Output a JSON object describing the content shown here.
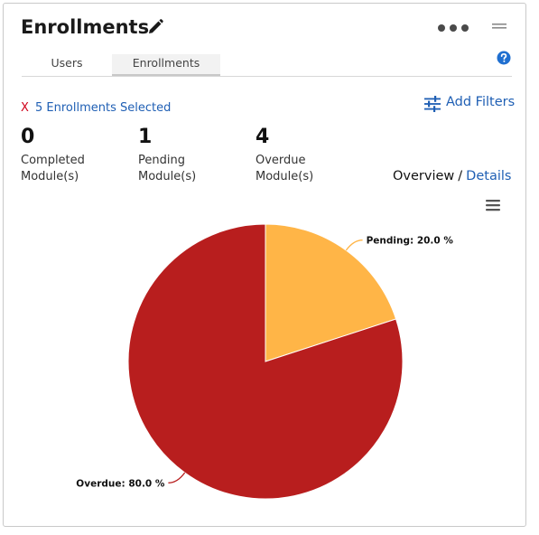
{
  "header": {
    "title": "Enrollments"
  },
  "tabs": [
    {
      "label": "Users"
    },
    {
      "label": "Enrollments"
    }
  ],
  "selection": {
    "clear_label": "X",
    "text": "5 Enrollments Selected"
  },
  "filters": {
    "label": "Add Filters"
  },
  "stats": [
    {
      "value": "0",
      "label_line1": "Completed",
      "label_line2": "Module(s)"
    },
    {
      "value": "1",
      "label_line1": "Pending",
      "label_line2": "Module(s)"
    },
    {
      "value": "4",
      "label_line1": "Overdue",
      "label_line2": "Module(s)"
    }
  ],
  "view_toggle": {
    "overview": "Overview",
    "separator": "/",
    "details": "Details"
  },
  "colors": {
    "pending": "#ffb547",
    "overdue": "#b81e1e",
    "link": "#1f5fb4",
    "close": "#d0021b"
  },
  "chart_data": {
    "type": "pie",
    "slices": [
      {
        "name": "Pending",
        "value": 20.0,
        "label": "Pending: 20.0 %"
      },
      {
        "name": "Overdue",
        "value": 80.0,
        "label": "Overdue: 80.0 %"
      }
    ]
  }
}
